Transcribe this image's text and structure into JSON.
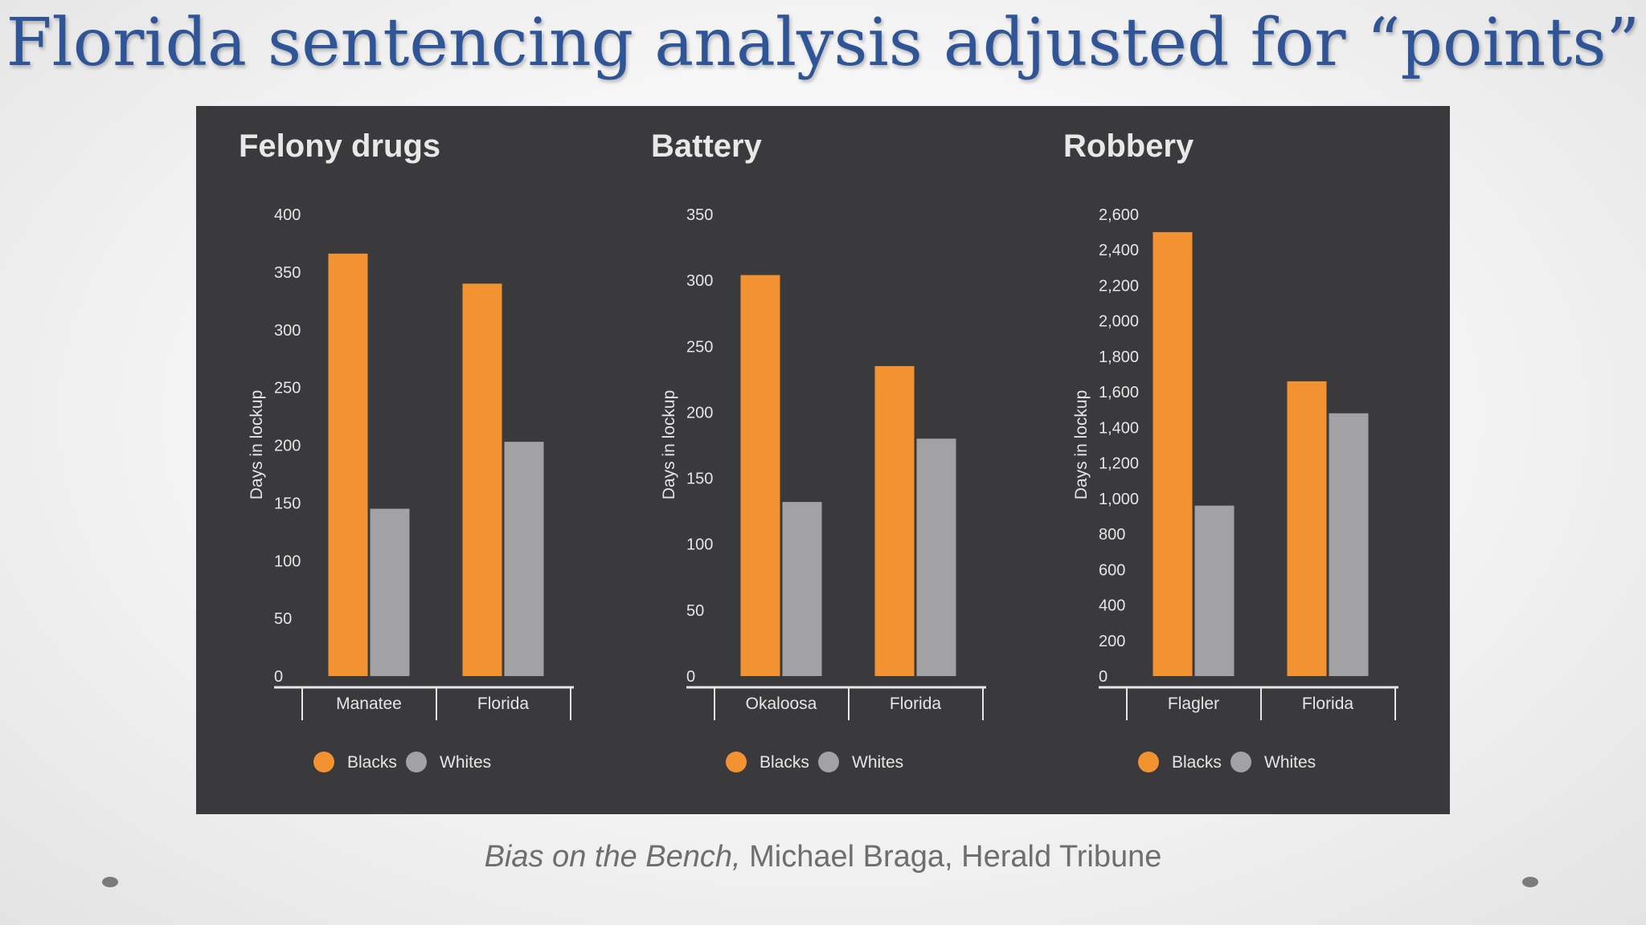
{
  "slide": {
    "title": "Florida sentencing analysis adjusted for “points”",
    "caption_italic": "Bias on the Bench,",
    "caption_rest": " Michael Braga, Herald Tribune"
  },
  "colors": {
    "panel_bg": "#3a393c",
    "blacks": "#f39231",
    "whites": "#a2a1a4",
    "axis": "#e6e6e6",
    "text": "#e6e6e6",
    "title_blue": "#2f5597"
  },
  "chart_data": [
    {
      "type": "bar",
      "title": "Felony drugs",
      "ylabel": "Days in lockup",
      "categories": [
        "Manatee",
        "Florida"
      ],
      "ylim": [
        0,
        400
      ],
      "yticks": [
        0,
        50,
        100,
        150,
        200,
        250,
        300,
        350,
        400
      ],
      "ytick_labels": [
        "0",
        "50",
        "100",
        "150",
        "200",
        "250",
        "300",
        "350",
        "400"
      ],
      "series": [
        {
          "name": "Blacks",
          "values": [
            366,
            340
          ]
        },
        {
          "name": "Whites",
          "values": [
            145,
            203
          ]
        }
      ],
      "legend": "bottom",
      "grid": false
    },
    {
      "type": "bar",
      "title": "Battery",
      "ylabel": "Days in lockup",
      "categories": [
        "Okaloosa",
        "Florida"
      ],
      "ylim": [
        0,
        350
      ],
      "yticks": [
        0,
        50,
        100,
        150,
        200,
        250,
        300,
        350
      ],
      "ytick_labels": [
        "0",
        "50",
        "100",
        "150",
        "200",
        "250",
        "300",
        "350"
      ],
      "series": [
        {
          "name": "Blacks",
          "values": [
            304,
            235
          ]
        },
        {
          "name": "Whites",
          "values": [
            132,
            180
          ]
        }
      ],
      "legend": "bottom",
      "grid": false
    },
    {
      "type": "bar",
      "title": "Robbery",
      "ylabel": "Days in lockup",
      "categories": [
        "Flagler",
        "Florida"
      ],
      "ylim": [
        0,
        2600
      ],
      "yticks": [
        0,
        200,
        400,
        600,
        800,
        1000,
        1200,
        1400,
        1600,
        1800,
        2000,
        2200,
        2400,
        2600
      ],
      "ytick_labels": [
        "0",
        "200",
        "400",
        "600",
        "800",
        "1,000",
        "1,200",
        "1,400",
        "1,600",
        "1,800",
        "2,000",
        "2,200",
        "2,400",
        "2,600"
      ],
      "series": [
        {
          "name": "Blacks",
          "values": [
            2500,
            1660
          ]
        },
        {
          "name": "Whites",
          "values": [
            960,
            1480
          ]
        }
      ],
      "legend": "bottom",
      "grid": false
    }
  ]
}
